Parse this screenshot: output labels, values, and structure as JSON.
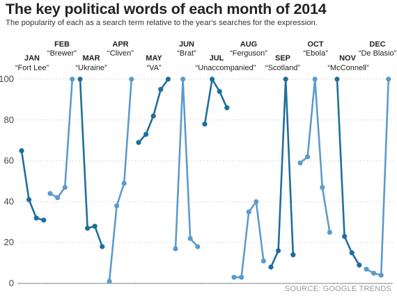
{
  "title": "The key political words of each month of 2014",
  "subtitle": "The popularity of each as a search term relative to the year's searches for the expression.",
  "source": "SOURCE: GOOGLE TRENDS",
  "colors": {
    "dark": "#1f6e9c",
    "light": "#5b9bcd",
    "grid": "#cfcfcf",
    "baseline": "#aaaaaa"
  },
  "chart_data": {
    "type": "line",
    "ylim": [
      0,
      100
    ],
    "yticks": [
      0,
      20,
      40,
      60,
      80,
      100
    ],
    "grid": true,
    "series": [
      {
        "month": "JAN",
        "name": "“Fort Lee”",
        "values": [
          65,
          41,
          32,
          31
        ],
        "shade": "dark"
      },
      {
        "month": "FEB",
        "name": "“Brewer”",
        "values": [
          44,
          42,
          47,
          100
        ],
        "shade": "light"
      },
      {
        "month": "MAR",
        "name": "“Ukraine”",
        "values": [
          100,
          27,
          28,
          18
        ],
        "shade": "dark"
      },
      {
        "month": "APR",
        "name": "“Cliven”",
        "values": [
          1,
          38,
          49,
          100
        ],
        "shade": "light"
      },
      {
        "month": "MAY",
        "name": "“VA”",
        "values": [
          69,
          73,
          82,
          95,
          100
        ],
        "shade": "dark"
      },
      {
        "month": "JUN",
        "name": "“Brat”",
        "values": [
          17,
          100,
          22,
          18
        ],
        "shade": "light"
      },
      {
        "month": "JUL",
        "name": "“Unaccompanied”",
        "values": [
          78,
          100,
          94,
          86
        ],
        "shade": "dark"
      },
      {
        "month": "AUG",
        "name": "“Ferguson”",
        "values": [
          3,
          3,
          35,
          40,
          11
        ],
        "shade": "light"
      },
      {
        "month": "SEP",
        "name": "“Scotland”",
        "values": [
          8,
          16,
          100,
          14
        ],
        "shade": "dark"
      },
      {
        "month": "OCT",
        "name": "“Ebola”",
        "values": [
          59,
          62,
          100,
          47,
          25
        ],
        "shade": "light"
      },
      {
        "month": "NOV",
        "name": "“McConnell”",
        "values": [
          100,
          23,
          15,
          9
        ],
        "shade": "dark"
      },
      {
        "month": "DEC",
        "name": "“De Blasio”",
        "values": [
          7,
          5,
          4,
          100
        ],
        "shade": "light"
      }
    ]
  }
}
